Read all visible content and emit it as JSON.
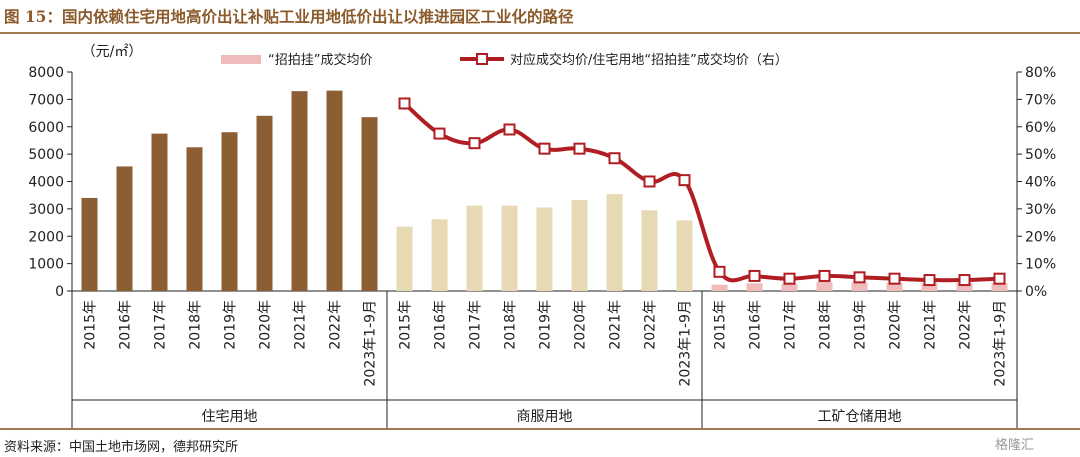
{
  "figure": {
    "title": "图 15：国内依赖住宅用地高价出让补贴工业用地低价出让以推进园区工业化的路径",
    "source": "资料来源：中国土地市场网，德邦研究所",
    "watermark": "格隆汇"
  },
  "colors": {
    "residential": "#8b5e34",
    "commercial": "#e8d9b5",
    "industrial": "#efbcbc",
    "line": "#b01e24",
    "frame": "#a37b52"
  },
  "chart_data": {
    "type": "bar",
    "y_unit_label": "（元/㎡）",
    "ylim": [
      0,
      8000
    ],
    "y_ticks": [
      "0",
      "1000",
      "2000",
      "3000",
      "4000",
      "5000",
      "6000",
      "7000",
      "8000"
    ],
    "y2lim": [
      0,
      80
    ],
    "y2_ticks": [
      "0%",
      "10%",
      "20%",
      "30%",
      "40%",
      "50%",
      "60%",
      "70%",
      "80%"
    ],
    "categories": [
      "2015年",
      "2016年",
      "2017年",
      "2018年",
      "2019年",
      "2020年",
      "2021年",
      "2022年",
      "2023年1-9月"
    ],
    "groups": [
      "住宅用地",
      "商服用地",
      "工矿仓储用地"
    ],
    "legend": [
      {
        "name": "“招拍挂”成交均价",
        "kind": "bar"
      },
      {
        "name": "对应成交均价/住宅用地“招拍挂”成交均价（右）",
        "kind": "line"
      }
    ],
    "bar_series": [
      {
        "group": "住宅用地",
        "values": [
          3400,
          4550,
          5750,
          5250,
          5800,
          6400,
          7300,
          7320,
          6350
        ]
      },
      {
        "group": "商服用地",
        "values": [
          2350,
          2620,
          3120,
          3120,
          3050,
          3320,
          3540,
          2950,
          2580
        ]
      },
      {
        "group": "工矿仓储用地",
        "values": [
          230,
          280,
          260,
          330,
          310,
          300,
          290,
          290,
          300
        ]
      }
    ],
    "line_series": {
      "axis": "right",
      "segments": [
        {
          "group": "商服用地",
          "values": [
            68.5,
            57.5,
            54.0,
            59.0,
            52.0,
            52.0,
            48.5,
            40.0,
            40.5
          ]
        },
        {
          "group": "工矿仓储用地",
          "values": [
            7.0,
            5.5,
            4.5,
            5.5,
            5.0,
            4.5,
            4.0,
            4.0,
            4.5
          ]
        }
      ]
    }
  }
}
